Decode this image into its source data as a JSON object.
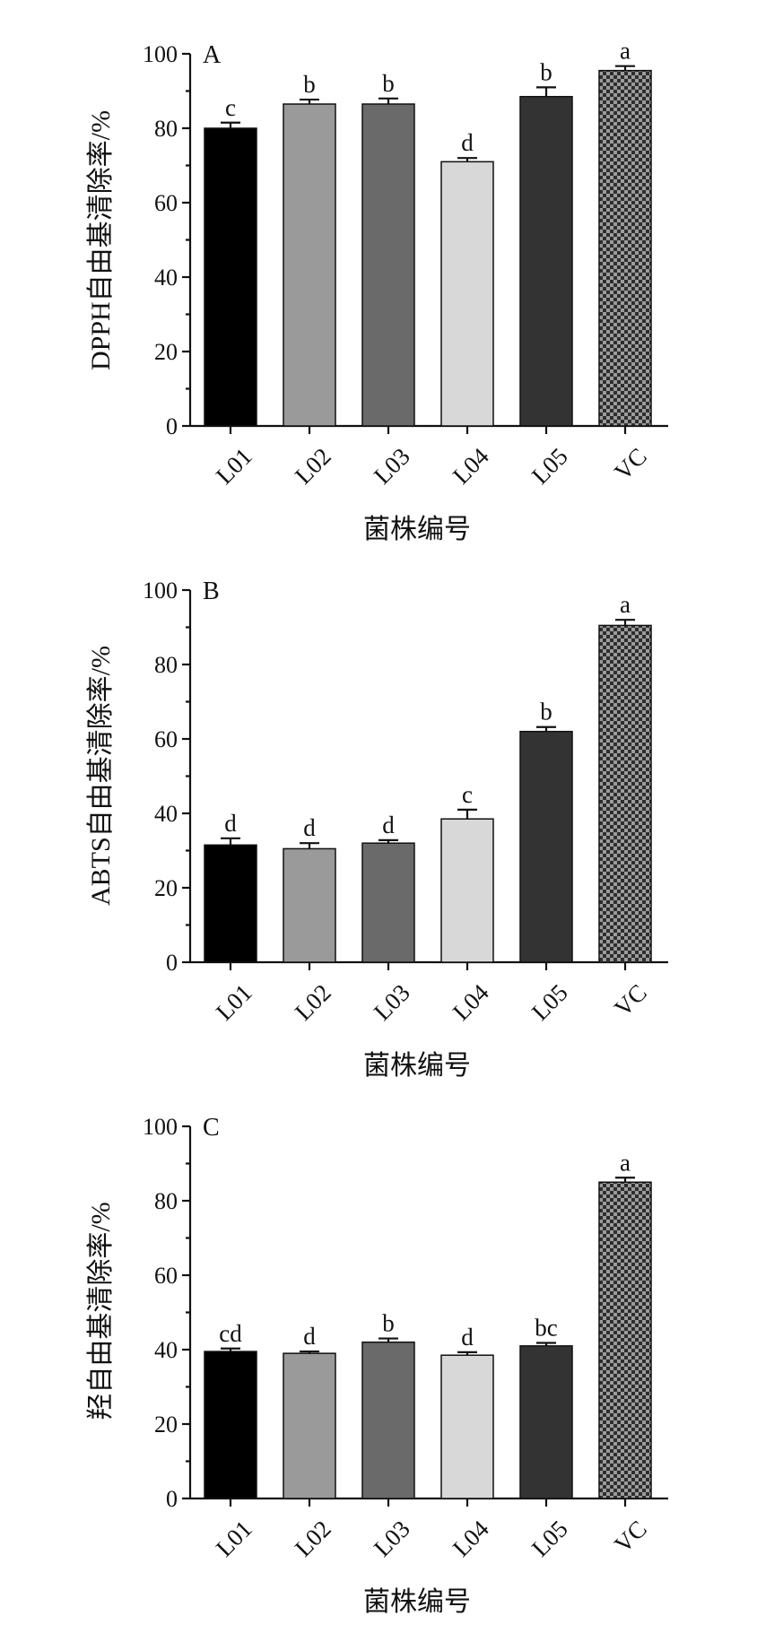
{
  "chart_data": [
    {
      "type": "bar",
      "panel_label": "A",
      "ylabel": "DPPH自由基清除率/%",
      "xlabel": "菌株编号",
      "ylim": [
        0,
        100
      ],
      "yticks": [
        0,
        20,
        40,
        60,
        80,
        100
      ],
      "categories": [
        "L01",
        "L02",
        "L03",
        "L04",
        "L05",
        "VC"
      ],
      "values": [
        80,
        86.5,
        86.5,
        71,
        88.5,
        95.5
      ],
      "errors": [
        1.5,
        1.2,
        1.5,
        1.0,
        2.5,
        1.2
      ],
      "significance": [
        "c",
        "b",
        "b",
        "d",
        "b",
        "a"
      ]
    },
    {
      "type": "bar",
      "panel_label": "B",
      "ylabel": "ABTS自由基清除率/%",
      "xlabel": "菌株编号",
      "ylim": [
        0,
        100
      ],
      "yticks": [
        0,
        20,
        40,
        60,
        80,
        100
      ],
      "categories": [
        "L01",
        "L02",
        "L03",
        "L04",
        "L05",
        "VC"
      ],
      "values": [
        31.5,
        30.5,
        32,
        38.5,
        62,
        90.5
      ],
      "errors": [
        1.8,
        1.5,
        0.8,
        2.5,
        1.2,
        1.5
      ],
      "significance": [
        "d",
        "d",
        "d",
        "c",
        "b",
        "a"
      ]
    },
    {
      "type": "bar",
      "panel_label": "C",
      "ylabel": "羟自由基清除率/%",
      "xlabel": "菌株编号",
      "ylim": [
        0,
        100
      ],
      "yticks": [
        0,
        20,
        40,
        60,
        80,
        100
      ],
      "categories": [
        "L01",
        "L02",
        "L03",
        "L04",
        "L05",
        "VC"
      ],
      "values": [
        39.5,
        39,
        42,
        38.5,
        41,
        85
      ],
      "errors": [
        0.8,
        0.5,
        1.0,
        0.8,
        0.8,
        1.2
      ],
      "significance": [
        "cd",
        "d",
        "b",
        "d",
        "bc",
        "a"
      ]
    }
  ],
  "colors": {
    "L01": "#000000",
    "L02": "#9a9a9a",
    "L03": "#6a6a6a",
    "L04": "#d8d8d8",
    "L05": "#333333",
    "VC_pattern_dark": "#2e2e2e",
    "VC_pattern_light": "#9c9c9c"
  }
}
